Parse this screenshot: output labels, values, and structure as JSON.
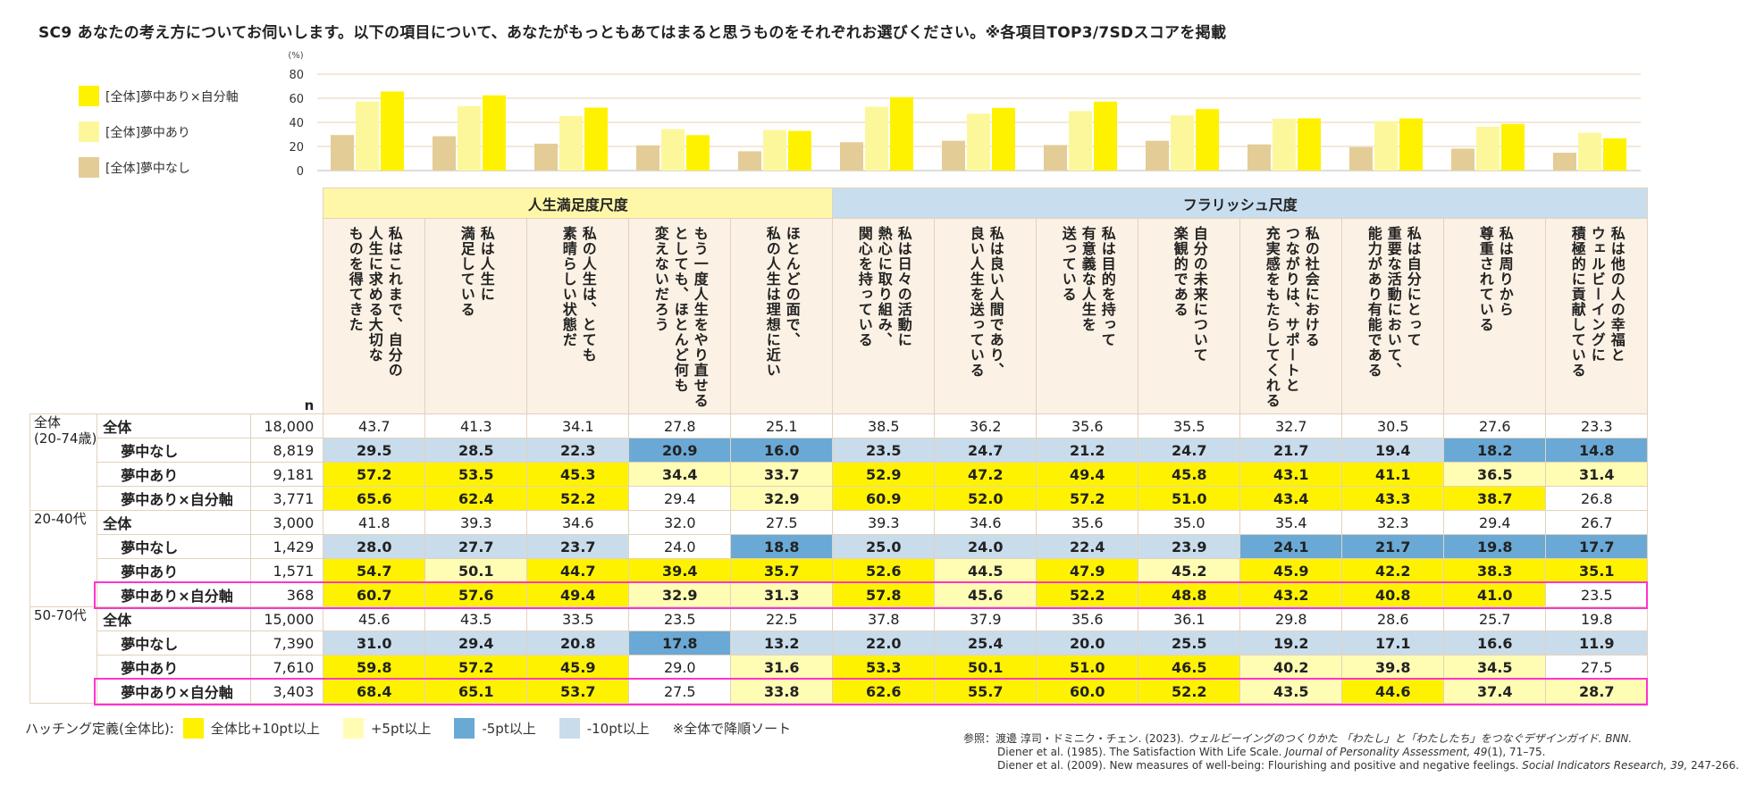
{
  "title": "SC9 あなたの考え方についてお伺いします。以下の項目について、あなたがもっともあてはまると思うものをそれぞれお選びください。※各項目TOP3/7SDスコアを掲載",
  "chart_data": {
    "type": "bar",
    "ylabel": "(%)",
    "ylim": [
      0,
      80
    ],
    "yticks": [
      0,
      20,
      40,
      60,
      80
    ],
    "categories": [
      "私はこれまで、自分の人生に求める大切なものを得てきた",
      "私は人生に満足している",
      "私の人生は、とても素晴らしい状態だ",
      "もう一度人生をやり直せるとしても、ほとんど何も変えないだろう",
      "ほとんどの面で、私の人生は理想に近い",
      "私は日々の活動に熱心に取り組み、関心を持っている",
      "私は良い人間であり、良い人生を送っている",
      "私は目的を持って有意義な人生を送っている",
      "自分の未来について楽観的である",
      "私の社会におけるつながりは、サポートと充実感をもたらしてくれる",
      "私は自分にとって重要な活動において、能力があり有能である",
      "私は周りから尊重されている",
      "私は他の人の幸福とウェルビーイングに積極的に貢献している"
    ],
    "series": [
      {
        "name": "[全体]夢中なし",
        "color": "#e4cc96",
        "values": [
          29.5,
          28.5,
          22.3,
          20.9,
          16.0,
          23.5,
          24.7,
          21.2,
          24.7,
          21.7,
          19.4,
          18.2,
          14.8
        ]
      },
      {
        "name": "[全体]夢中あり",
        "color": "#fdf79c",
        "values": [
          57.2,
          53.5,
          45.3,
          34.4,
          33.7,
          52.9,
          47.2,
          49.4,
          45.8,
          43.1,
          41.1,
          36.5,
          31.4
        ]
      },
      {
        "name": "[全体]夢中あり×自分軸",
        "color": "#fff200",
        "values": [
          65.6,
          62.4,
          52.2,
          29.4,
          32.9,
          60.9,
          52.0,
          57.2,
          51.0,
          43.4,
          43.3,
          38.7,
          26.8
        ]
      }
    ]
  },
  "legend": [
    {
      "label": "[全体]夢中あり×自分軸",
      "color": "#fff200"
    },
    {
      "label": "[全体]夢中あり",
      "color": "#fdf79c"
    },
    {
      "label": "[全体]夢中なし",
      "color": "#e4cc96"
    }
  ],
  "table": {
    "groups": [
      {
        "label": "人生満足度尺度",
        "span": 5,
        "color": "#fff7a8"
      },
      {
        "label": "フラリッシュ尺度",
        "span": 8,
        "color": "#c8ddee"
      }
    ],
    "items": [
      [
        "私はこれまで、自分の",
        "人生に求める大切な",
        "ものを得てきた"
      ],
      [
        "私は人生に",
        "満足している"
      ],
      [
        "私の人生は、とても",
        "素晴らしい状態だ"
      ],
      [
        "もう一度人生をやり直せる",
        "としても、ほとんど何も",
        "変えないだろう"
      ],
      [
        "ほとんどの面で、",
        "私の人生は理想に近い"
      ],
      [
        "私は日々の活動に",
        "熱心に取り組み、",
        "関心を持っている"
      ],
      [
        "私は良い人間であり、",
        "良い人生を送っている"
      ],
      [
        "私は目的を持って",
        "有意義な人生を",
        "送っている"
      ],
      [
        "自分の未来について",
        "楽観的である"
      ],
      [
        "私の社会における",
        "つながりは、サポートと",
        "充実感をもたらしてくれる"
      ],
      [
        "私は自分にとって",
        "重要な活動において、",
        "能力があり有能である"
      ],
      [
        "私は周りから",
        "尊重されている"
      ],
      [
        "私は他の人の幸福と",
        "ウェルビーイングに",
        "積極的に貢献している"
      ]
    ],
    "n_header": "n",
    "rows": [
      {
        "group": "全体",
        "group_sub": "(20-74歳)",
        "segment": "全体",
        "n": "18,000",
        "values": [
          "43.7",
          "41.3",
          "34.1",
          "27.8",
          "25.1",
          "38.5",
          "36.2",
          "35.6",
          "35.5",
          "32.7",
          "30.5",
          "27.6",
          "23.3"
        ],
        "shade": [
          "",
          "",
          "",
          "",
          "",
          "",
          "",
          "",
          "",
          "",
          "",
          "",
          ""
        ]
      },
      {
        "group": "",
        "segment": "夢中なし",
        "n": "8,819",
        "values": [
          "29.5",
          "28.5",
          "22.3",
          "20.9",
          "16.0",
          "23.5",
          "24.7",
          "21.2",
          "24.7",
          "21.7",
          "19.4",
          "18.2",
          "14.8"
        ],
        "shade": [
          "LB",
          "LB",
          "LB",
          "B",
          "B",
          "LB",
          "LB",
          "LB",
          "LB",
          "LB",
          "LB",
          "B",
          "B"
        ]
      },
      {
        "group": "",
        "segment": "夢中あり",
        "n": "9,181",
        "values": [
          "57.2",
          "53.5",
          "45.3",
          "34.4",
          "33.7",
          "52.9",
          "47.2",
          "49.4",
          "45.8",
          "43.1",
          "41.1",
          "36.5",
          "31.4"
        ],
        "shade": [
          "Y",
          "Y",
          "Y",
          "LY",
          "LY",
          "Y",
          "Y",
          "Y",
          "Y",
          "Y",
          "Y",
          "LY",
          "LY"
        ]
      },
      {
        "group": "",
        "segment": "夢中あり×自分軸",
        "n": "3,771",
        "values": [
          "65.6",
          "62.4",
          "52.2",
          "29.4",
          "32.9",
          "60.9",
          "52.0",
          "57.2",
          "51.0",
          "43.4",
          "43.3",
          "38.7",
          "26.8"
        ],
        "shade": [
          "Y",
          "Y",
          "Y",
          "",
          "LY",
          "Y",
          "Y",
          "Y",
          "Y",
          "Y",
          "Y",
          "Y",
          ""
        ]
      },
      {
        "group": "20-40代",
        "segment": "全体",
        "n": "3,000",
        "values": [
          "41.8",
          "39.3",
          "34.6",
          "32.0",
          "27.5",
          "39.3",
          "34.6",
          "35.6",
          "35.0",
          "35.4",
          "32.3",
          "29.4",
          "26.7"
        ],
        "shade": [
          "",
          "",
          "",
          "",
          "",
          "",
          "",
          "",
          "",
          "",
          "",
          "",
          ""
        ]
      },
      {
        "group": "",
        "segment": "夢中なし",
        "n": "1,429",
        "values": [
          "28.0",
          "27.7",
          "23.7",
          "24.0",
          "18.8",
          "25.0",
          "24.0",
          "22.4",
          "23.9",
          "24.1",
          "21.7",
          "19.8",
          "17.7"
        ],
        "shade": [
          "LB",
          "LB",
          "LB",
          "",
          "B",
          "LB",
          "LB",
          "LB",
          "LB",
          "B",
          "B",
          "B",
          "B"
        ]
      },
      {
        "group": "",
        "segment": "夢中あり",
        "n": "1,571",
        "values": [
          "54.7",
          "50.1",
          "44.7",
          "39.4",
          "35.7",
          "52.6",
          "44.5",
          "47.9",
          "45.2",
          "45.9",
          "42.2",
          "38.3",
          "35.1"
        ],
        "shade": [
          "Y",
          "LY",
          "Y",
          "Y",
          "Y",
          "Y",
          "LY",
          "Y",
          "LY",
          "Y",
          "Y",
          "Y",
          "Y"
        ]
      },
      {
        "group": "",
        "segment": "夢中あり×自分軸",
        "n": "368",
        "values": [
          "60.7",
          "57.6",
          "49.4",
          "32.9",
          "31.3",
          "57.8",
          "45.6",
          "52.2",
          "48.8",
          "43.2",
          "40.8",
          "41.0",
          "23.5"
        ],
        "shade": [
          "Y",
          "Y",
          "Y",
          "LY",
          "LY",
          "Y",
          "LY",
          "Y",
          "Y",
          "Y",
          "Y",
          "Y",
          ""
        ],
        "highlight": true
      },
      {
        "group": "50-70代",
        "segment": "全体",
        "n": "15,000",
        "values": [
          "45.6",
          "43.5",
          "33.5",
          "23.5",
          "22.5",
          "37.8",
          "37.9",
          "35.6",
          "36.1",
          "29.8",
          "28.6",
          "25.7",
          "19.8"
        ],
        "shade": [
          "",
          "",
          "",
          "",
          "",
          "",
          "",
          "",
          "",
          "",
          "",
          "",
          ""
        ]
      },
      {
        "group": "",
        "segment": "夢中なし",
        "n": "7,390",
        "values": [
          "31.0",
          "29.4",
          "20.8",
          "17.8",
          "13.2",
          "22.0",
          "25.4",
          "20.0",
          "25.5",
          "19.2",
          "17.1",
          "16.6",
          "11.9"
        ],
        "shade": [
          "LB",
          "LB",
          "LB",
          "B",
          "LB",
          "LB",
          "LB",
          "LB",
          "LB",
          "LB",
          "LB",
          "LB",
          "LB"
        ]
      },
      {
        "group": "",
        "segment": "夢中あり",
        "n": "7,610",
        "values": [
          "59.8",
          "57.2",
          "45.9",
          "29.0",
          "31.6",
          "53.3",
          "50.1",
          "51.0",
          "46.5",
          "40.2",
          "39.8",
          "34.5",
          "27.5"
        ],
        "shade": [
          "Y",
          "Y",
          "Y",
          "",
          "LY",
          "Y",
          "Y",
          "Y",
          "Y",
          "LY",
          "LY",
          "LY",
          ""
        ]
      },
      {
        "group": "",
        "segment": "夢中あり×自分軸",
        "n": "3,403",
        "values": [
          "68.4",
          "65.1",
          "53.7",
          "27.5",
          "33.8",
          "62.6",
          "55.7",
          "60.0",
          "52.2",
          "43.5",
          "44.6",
          "37.4",
          "28.7"
        ],
        "shade": [
          "Y",
          "Y",
          "Y",
          "",
          "LY",
          "Y",
          "Y",
          "Y",
          "Y",
          "LY",
          "Y",
          "LY",
          "LY"
        ],
        "highlight": true
      }
    ]
  },
  "hatching": {
    "label": "ハッチング定義(全体比):",
    "items": [
      {
        "label": "全体比+10pt以上",
        "color": "#fff200"
      },
      {
        "label": "+5pt以上",
        "color": "#fffcb4"
      },
      {
        "label": "-5pt以上",
        "color": "#6aa9d6"
      },
      {
        "label": "-10pt以上",
        "color": "#c9dcec"
      }
    ],
    "note": "※全体で降順ソート"
  },
  "references": {
    "prefix": "参照：",
    "r1_main": "渡邊 淳司・ドミニク・チェン. (2023). ",
    "r1_ital": "ウェルビーイングのつくりかた 「わたし」と「わたしたち」をつなぐデザインガイド. BNN.",
    "r2_main": "Diener et al. (1985). The Satisfaction With Life Scale. ",
    "r2_ital": "Journal of Personality Assessment, 49",
    "r2_tail": "(1), 71–75.",
    "r3_main": "Diener et al. (2009). New measures of well-being: Flourishing and positive and negative feelings. ",
    "r3_ital": "Social Indicators Research, 39,",
    "r3_tail": " 247-266."
  }
}
